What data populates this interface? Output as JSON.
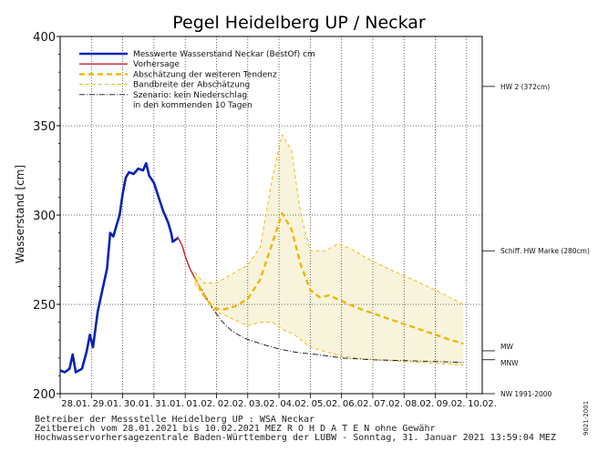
{
  "chart_data": {
    "type": "line",
    "title": "Pegel Heidelberg UP / Neckar",
    "ylabel": "Wasserstand [cm]",
    "ylim": [
      200,
      400
    ],
    "yticks": [
      "200",
      "250",
      "300",
      "350",
      "400"
    ],
    "x_labels": [
      "28.01.",
      "29.01.",
      "30.01.",
      "31.01.",
      "01.02.",
      "02.02.",
      "03.02.",
      "04.02.",
      "05.02.",
      "06.02.",
      "07.02.",
      "08.02.",
      "09.02.",
      "10.02."
    ],
    "xlim_days": [
      0,
      13.5
    ],
    "grid": true,
    "legend_position": "top-left",
    "legend": [
      "Messwerte Wasserstand Neckar (BestOf)  cm",
      "Vorhersage",
      "Abschätzung der weiteren Tendenz",
      "Bandbreite der Abschätzung",
      "Szenario: kein Niederschlag",
      "in den kommenden 10 Tagen"
    ],
    "reference_lines": [
      {
        "label": "HW 2 (372cm)",
        "value": 372
      },
      {
        "label": "Schiff. HW Marke (280cm)",
        "value": 280
      },
      {
        "label": "MW",
        "value": 224
      },
      {
        "label": "MNW",
        "value": 219
      },
      {
        "label": "NW 1991-2000",
        "value": 200
      }
    ],
    "series": [
      {
        "name": "Messwerte Wasserstand Neckar (BestOf)  cm",
        "color": "#0a23b4",
        "style": "solid-thick",
        "points": [
          [
            0.0,
            213
          ],
          [
            0.15,
            212
          ],
          [
            0.3,
            214
          ],
          [
            0.4,
            222
          ],
          [
            0.5,
            212
          ],
          [
            0.7,
            214
          ],
          [
            0.85,
            224
          ],
          [
            0.95,
            233
          ],
          [
            1.05,
            226
          ],
          [
            1.2,
            246
          ],
          [
            1.35,
            258
          ],
          [
            1.5,
            270
          ],
          [
            1.6,
            290
          ],
          [
            1.7,
            288
          ],
          [
            1.8,
            294
          ],
          [
            1.9,
            300
          ],
          [
            2.0,
            312
          ],
          [
            2.1,
            321
          ],
          [
            2.2,
            324
          ],
          [
            2.35,
            323
          ],
          [
            2.5,
            326
          ],
          [
            2.65,
            325
          ],
          [
            2.75,
            329
          ],
          [
            2.85,
            322
          ],
          [
            3.0,
            318
          ],
          [
            3.15,
            310
          ],
          [
            3.3,
            302
          ],
          [
            3.45,
            296
          ],
          [
            3.55,
            290
          ],
          [
            3.6,
            285
          ],
          [
            3.75,
            287
          ]
        ]
      },
      {
        "name": "Vorhersage",
        "color": "#c0202a",
        "style": "solid",
        "points": [
          [
            3.75,
            288
          ],
          [
            3.9,
            283
          ],
          [
            4.0,
            277
          ],
          [
            4.15,
            270
          ],
          [
            4.3,
            265
          ]
        ]
      },
      {
        "name": "Abschätzung der weiteren Tendenz",
        "color": "#f0b400",
        "style": "dashed-thick",
        "points": [
          [
            4.3,
            265
          ],
          [
            4.6,
            255
          ],
          [
            4.9,
            248
          ],
          [
            5.2,
            247
          ],
          [
            5.6,
            249
          ],
          [
            6.0,
            253
          ],
          [
            6.4,
            264
          ],
          [
            6.8,
            285
          ],
          [
            7.1,
            301
          ],
          [
            7.4,
            292
          ],
          [
            7.7,
            272
          ],
          [
            8.0,
            258
          ],
          [
            8.3,
            254
          ],
          [
            8.6,
            255
          ],
          [
            9.0,
            252
          ],
          [
            9.5,
            248
          ],
          [
            10.0,
            245
          ],
          [
            10.5,
            242
          ],
          [
            11.0,
            239
          ],
          [
            11.5,
            236
          ],
          [
            12.0,
            233
          ],
          [
            12.5,
            230
          ],
          [
            12.9,
            228
          ]
        ]
      },
      {
        "name": "Bandbreite der Abschätzung (oben)",
        "color": "#f0b400",
        "style": "dashed-thin",
        "points": [
          [
            4.3,
            268
          ],
          [
            4.6,
            262
          ],
          [
            5.0,
            262
          ],
          [
            5.5,
            267
          ],
          [
            6.0,
            272
          ],
          [
            6.4,
            282
          ],
          [
            6.8,
            322
          ],
          [
            7.1,
            345
          ],
          [
            7.4,
            336
          ],
          [
            7.7,
            300
          ],
          [
            8.0,
            280
          ],
          [
            8.5,
            280
          ],
          [
            8.9,
            284
          ],
          [
            9.3,
            281
          ],
          [
            10.0,
            274
          ],
          [
            11.0,
            266
          ],
          [
            12.0,
            258
          ],
          [
            12.9,
            250
          ]
        ]
      },
      {
        "name": "Bandbreite der Abschätzung (unten)",
        "color": "#f0b400",
        "style": "dashed-thin",
        "points": [
          [
            4.3,
            262
          ],
          [
            4.6,
            254
          ],
          [
            5.0,
            246
          ],
          [
            5.5,
            242
          ],
          [
            6.0,
            238
          ],
          [
            6.4,
            240
          ],
          [
            6.8,
            240
          ],
          [
            7.1,
            236
          ],
          [
            7.5,
            233
          ],
          [
            8.0,
            226
          ],
          [
            9.0,
            221
          ],
          [
            10.0,
            219
          ],
          [
            11.0,
            218
          ],
          [
            12.0,
            217
          ],
          [
            12.9,
            216
          ]
        ]
      },
      {
        "name": "Szenario: kein Niederschlag",
        "color": "#111111",
        "style": "dashdot",
        "points": [
          [
            4.3,
            265
          ],
          [
            4.6,
            256
          ],
          [
            4.9,
            247
          ],
          [
            5.2,
            240
          ],
          [
            5.5,
            235
          ],
          [
            5.9,
            231
          ],
          [
            6.4,
            228
          ],
          [
            7.0,
            225
          ],
          [
            7.6,
            223
          ],
          [
            8.2,
            222
          ],
          [
            9.0,
            220
          ],
          [
            10.0,
            219
          ],
          [
            11.0,
            218.5
          ],
          [
            12.0,
            218
          ],
          [
            12.9,
            217.5
          ]
        ]
      }
    ]
  },
  "footer": {
    "line1": "Betreiber der Messstelle Heidelberg UP : WSA Neckar",
    "line2": "Zeitbereich vom 28.01.2021 bis 10.02.2021   MEZ   R O H D A T E N ohne Gewähr",
    "line3": "Hochwasservorhersagezentrale Baden-Württemberg der LUBW - Sonntag, 31. Januar 2021 13:59:04 MEZ",
    "side_code": "9021-2001"
  }
}
